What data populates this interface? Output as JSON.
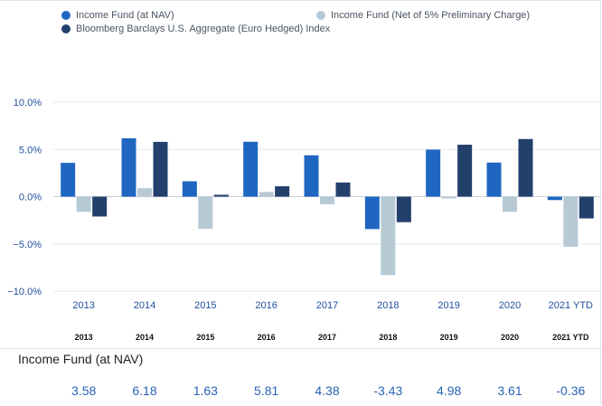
{
  "chart_data": {
    "type": "bar",
    "categories": [
      "2013",
      "2014",
      "2015",
      "2016",
      "2017",
      "2018",
      "2019",
      "2020",
      "2021 YTD"
    ],
    "series": [
      {
        "name": "Income Fund (at NAV)",
        "color": "#1f66c1",
        "values": [
          3.58,
          6.18,
          1.63,
          5.81,
          4.38,
          -3.43,
          4.98,
          3.61,
          -0.36
        ]
      },
      {
        "name": "Income Fund (Net of 5% Preliminary Charge)",
        "color": "#b8c9d6",
        "values": [
          -1.6,
          0.9,
          -3.4,
          0.5,
          -0.8,
          -8.3,
          -0.2,
          -1.6,
          -5.3
        ]
      },
      {
        "name": "Bloomberg Barclays U.S. Aggregate (Euro Hedged) Index",
        "color": "#233f6c",
        "values": [
          -2.1,
          5.8,
          0.2,
          1.1,
          1.5,
          -2.7,
          5.5,
          6.1,
          -2.3
        ]
      }
    ],
    "yticks": [
      "10.0%",
      "5.0%",
      "0.0%",
      "−5.0%",
      "−10.0%"
    ],
    "ylim": [
      -10,
      10
    ],
    "grid": true,
    "legend_position": "top"
  },
  "table": {
    "headers": [
      "2013",
      "2014",
      "2015",
      "2016",
      "2017",
      "2018",
      "2019",
      "2020",
      "2021 YTD"
    ],
    "row_label": "Income Fund (at NAV)",
    "values": [
      "3.58",
      "6.18",
      "1.63",
      "5.81",
      "4.38",
      "-3.43",
      "4.98",
      "3.61",
      "-0.36"
    ]
  }
}
